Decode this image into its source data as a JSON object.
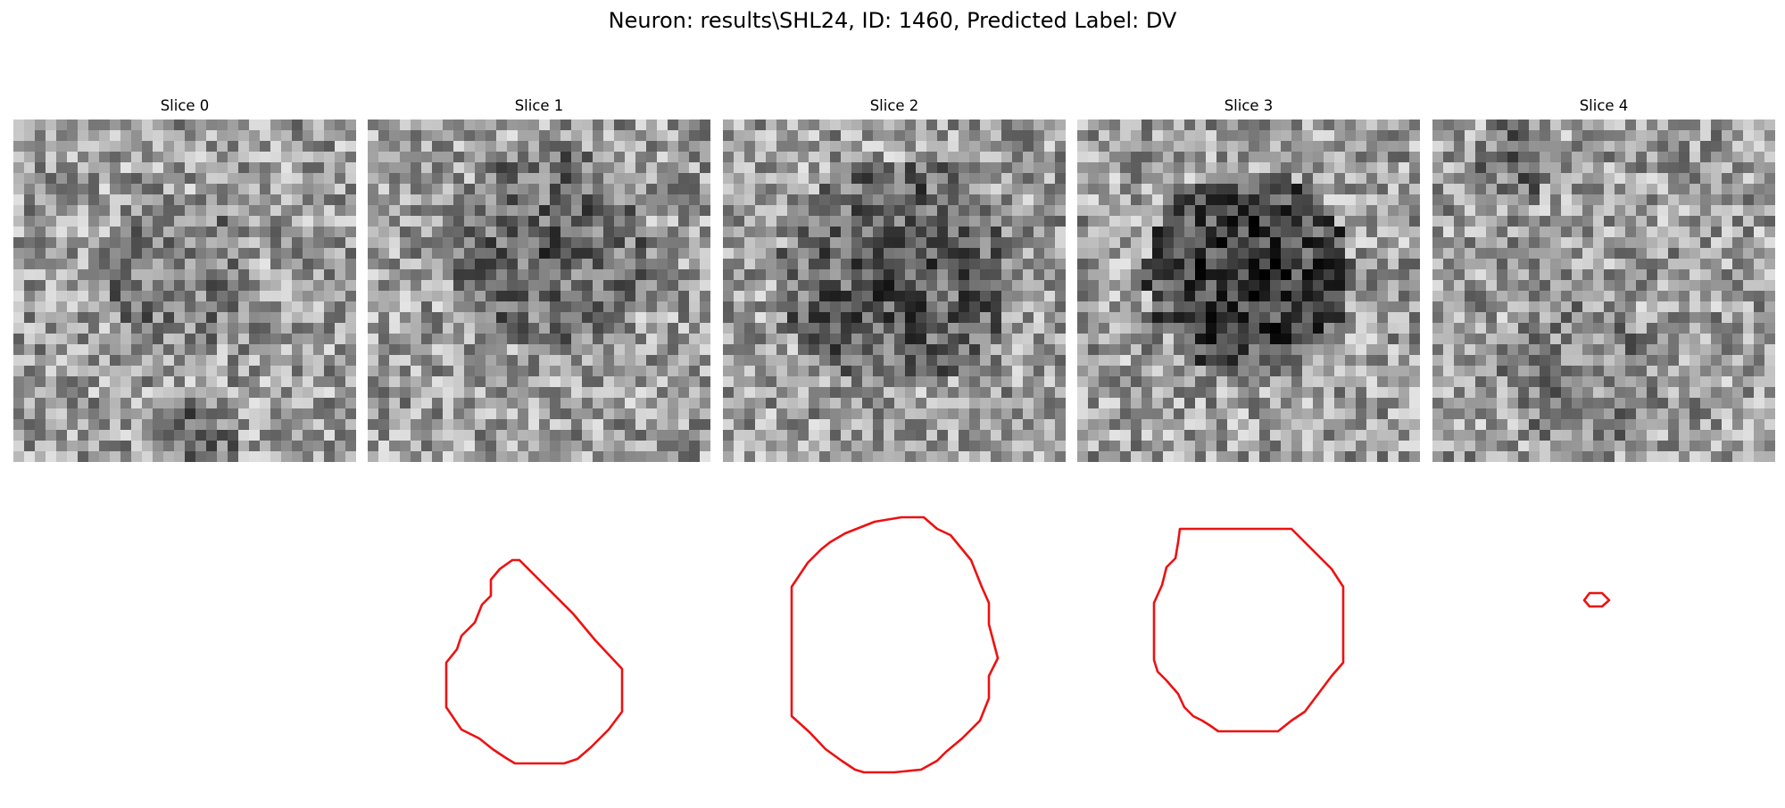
{
  "figure": {
    "title": "Neuron: results\\SHL24, ID: 1460, Predicted Label: DV"
  },
  "style": {
    "contour_color": "#ee1111",
    "colormap": "gray"
  },
  "slices": [
    {
      "title": "Slice 0",
      "has_contour": false
    },
    {
      "title": "Slice 1",
      "has_contour": true
    },
    {
      "title": "Slice 2",
      "has_contour": true
    },
    {
      "title": "Slice 3",
      "has_contour": true
    },
    {
      "title": "Slice 4",
      "has_contour": true
    }
  ]
}
